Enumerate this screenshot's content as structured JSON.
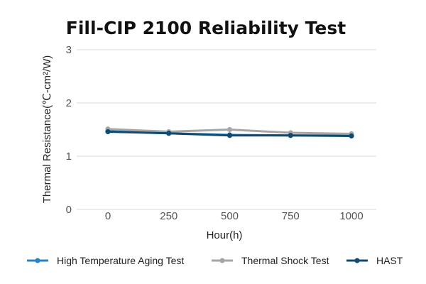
{
  "chart_data": {
    "type": "line",
    "title": "Fill-CIP 2100 Reliability Test",
    "xlabel": "Hour(h)",
    "ylabel": "Thermal Resistance(℃-cm²/W)",
    "x": [
      0,
      250,
      500,
      750,
      1000
    ],
    "x_tick_labels": [
      "0",
      "250",
      "500",
      "750",
      "1000"
    ],
    "ylim": [
      0,
      3
    ],
    "y_ticks": [
      0,
      1,
      2,
      3
    ],
    "y_tick_labels": [
      "0",
      "1",
      "2",
      "3"
    ],
    "grid": true,
    "legend_position": "bottom",
    "series": [
      {
        "name": "High Temperature Aging Test",
        "color": "#2b82c5",
        "values": [
          1.47,
          1.43,
          1.4,
          1.39,
          1.39
        ]
      },
      {
        "name": "Thermal Shock Test",
        "color": "#a6a6a6",
        "values": [
          1.51,
          1.46,
          1.5,
          1.44,
          1.42
        ]
      },
      {
        "name": "HAST",
        "color": "#0f4a73",
        "values": [
          1.46,
          1.43,
          1.39,
          1.39,
          1.38
        ]
      }
    ]
  }
}
